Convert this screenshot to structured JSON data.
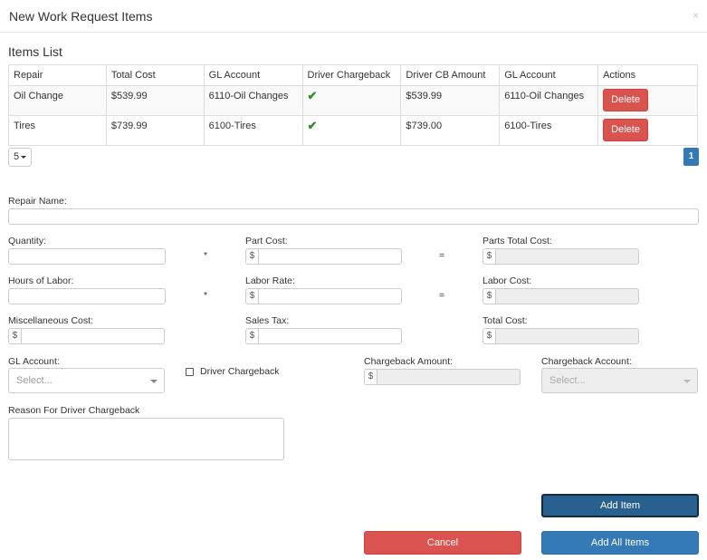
{
  "modal": {
    "title": "New Work Request Items",
    "close": "×"
  },
  "items_list": {
    "title": "Items List",
    "columns": [
      "Repair",
      "Total Cost",
      "GL Account",
      "Driver Chargeback",
      "Driver CB Amount",
      "GL Account",
      "Actions"
    ],
    "rows": [
      {
        "repair": "Oil Change",
        "total_cost": "$539.99",
        "gl_account": "6110-Oil Changes",
        "driver_chargeback": "✔",
        "driver_cb_amount": "$539.99",
        "gl_account2": "6110-Oil Changes",
        "action": "Delete"
      },
      {
        "repair": "Tires",
        "total_cost": "$739.99",
        "gl_account": "6100-Tires",
        "driver_chargeback": "✔",
        "driver_cb_amount": "$739.00",
        "gl_account2": "6100-Tires",
        "action": "Delete"
      }
    ],
    "page_size": "5",
    "current_page": "1"
  },
  "form": {
    "repair_name_label": "Repair Name:",
    "quantity_label": "Quantity:",
    "part_cost_label": "Part Cost:",
    "parts_total_cost_label": "Parts Total Cost:",
    "hours_of_labor_label": "Hours of Labor:",
    "labor_rate_label": "Labor Rate:",
    "labor_cost_label": "Labor Cost:",
    "misc_cost_label": "Miscellaneous Cost:",
    "sales_tax_label": "Sales Tax:",
    "total_cost_label": "Total Cost:",
    "gl_account_label": "GL Account:",
    "gl_account_placeholder": "Select...",
    "driver_chargeback_label": "Driver Chargeback",
    "chargeback_amount_label": "Chargeback Amount:",
    "chargeback_account_label": "Chargeback Account:",
    "chargeback_account_placeholder": "Select...",
    "reason_label": "Reason For Driver Chargeback",
    "currency_symbol": "$",
    "multiply_sign": "*",
    "equals_sign": "="
  },
  "buttons": {
    "add_item": "Add Item",
    "cancel": "Cancel",
    "add_all_items": "Add All Items"
  },
  "colors": {
    "primary": "#337ab7",
    "primary_dark": "#286090",
    "danger": "#d9534f",
    "success_check": "#2e8b2e"
  }
}
